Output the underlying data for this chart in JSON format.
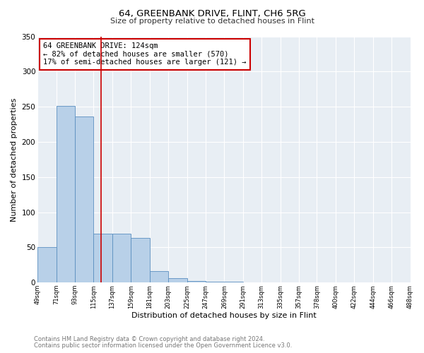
{
  "title": "64, GREENBANK DRIVE, FLINT, CH6 5RG",
  "subtitle": "Size of property relative to detached houses in Flint",
  "xlabel": "Distribution of detached houses by size in Flint",
  "ylabel": "Number of detached properties",
  "footnote1": "Contains HM Land Registry data © Crown copyright and database right 2024.",
  "footnote2": "Contains public sector information licensed under the Open Government Licence v3.0.",
  "bar_edges": [
    49,
    71,
    93,
    115,
    137,
    159,
    181,
    203,
    225,
    247,
    269,
    291,
    313,
    335,
    357,
    378,
    400,
    422,
    444,
    466,
    488
  ],
  "bar_heights": [
    50,
    251,
    236,
    69,
    69,
    63,
    16,
    6,
    2,
    1,
    1,
    0,
    0,
    0,
    0,
    0,
    0,
    0,
    0,
    0
  ],
  "bar_color": "#b8d0e8",
  "bar_edge_color": "#5a8fc0",
  "vline_color": "#cc0000",
  "vline_x": 124,
  "ylim": [
    0,
    350
  ],
  "annotation_text": "64 GREENBANK DRIVE: 124sqm\n← 82% of detached houses are smaller (570)\n17% of semi-detached houses are larger (121) →",
  "annotation_box_edge_color": "#cc0000",
  "background_color": "#e8eef4",
  "tick_labels": [
    "49sqm",
    "71sqm",
    "93sqm",
    "115sqm",
    "137sqm",
    "159sqm",
    "181sqm",
    "203sqm",
    "225sqm",
    "247sqm",
    "269sqm",
    "291sqm",
    "313sqm",
    "335sqm",
    "357sqm",
    "378sqm",
    "400sqm",
    "422sqm",
    "444sqm",
    "466sqm",
    "488sqm"
  ]
}
